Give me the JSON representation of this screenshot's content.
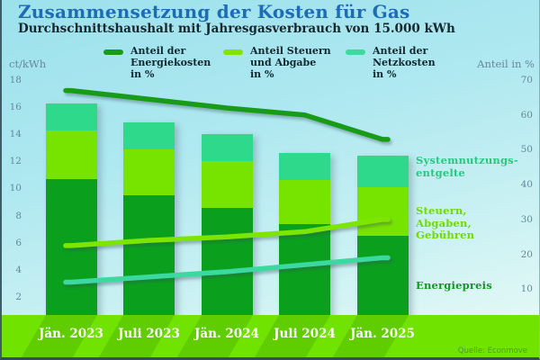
{
  "header": {
    "title": "Zusammensetzung der Kosten für Gas",
    "subtitle": "Durchschnittshaushalt mit Jahresgasverbrauch von 15.000 kWh"
  },
  "legend": {
    "items": [
      {
        "label": "Anteil der\nEnergiekosten\nin %",
        "color": "#189c18"
      },
      {
        "label": "Anteil Steuern\nund Abgabe\nin %",
        "color": "#84e400"
      },
      {
        "label": "Anteil der\nNetzkosten\nin %",
        "color": "#3eda9d"
      }
    ]
  },
  "chart_data": {
    "type": "bar+line",
    "title": "Zusammensetzung der Kosten für Gas",
    "subtitle": "Durchschnittshaushalt mit Jahresgasverbrauch von 15.000 kWh",
    "categories": [
      "Jän. 2023",
      "Juli 2023",
      "Jän. 2024",
      "Juli 2024",
      "Jän. 2025"
    ],
    "bar_unit": "ct/kWh",
    "bar_series": [
      {
        "name": "Energiepreis",
        "color": "#0aa01e",
        "values": [
          10.7,
          9.5,
          8.6,
          7.4,
          6.5
        ]
      },
      {
        "name": "Steuern, Abgaben, Gebühren",
        "color": "#77e400",
        "values": [
          3.6,
          3.4,
          3.4,
          3.2,
          3.6
        ]
      },
      {
        "name": "Systemnutzungsentgelte",
        "color": "#2fd98c",
        "values": [
          2.0,
          2.0,
          2.0,
          2.0,
          2.3
        ]
      }
    ],
    "line_unit": "%",
    "line_series": [
      {
        "name": "Anteil der Energiekosten in %",
        "color": "#189c18",
        "values": [
          67,
          64.5,
          62,
          60,
          53
        ]
      },
      {
        "name": "Anteil Steuern und Abgabe in %",
        "color": "#7de600",
        "values": [
          22.5,
          24,
          25,
          26.5,
          30
        ]
      },
      {
        "name": "Anteil der Netzkosten in %",
        "color": "#3bd9a0",
        "values": [
          12,
          13.5,
          15,
          17,
          19
        ]
      }
    ],
    "left_axis": {
      "label": "ct/kWh",
      "ticks": [
        2,
        4,
        6,
        8,
        10,
        12,
        14,
        16,
        18
      ],
      "range": [
        0,
        18
      ]
    },
    "right_axis": {
      "label": "Anteil in %",
      "ticks": [
        10,
        20,
        30,
        40,
        50,
        60,
        70
      ],
      "range": [
        0,
        70
      ]
    },
    "right_labels": [
      {
        "text": "Systemnutzungs-\nentgelte",
        "color": "#2bc77e"
      },
      {
        "text": "Steuern,\nAbgaben,\nGebühren",
        "color": "#72da00"
      },
      {
        "text": "Energiepreis",
        "color": "#0e9a1c"
      }
    ],
    "legend_position": "top",
    "grid": false
  },
  "source": "Quelle: Econmove"
}
